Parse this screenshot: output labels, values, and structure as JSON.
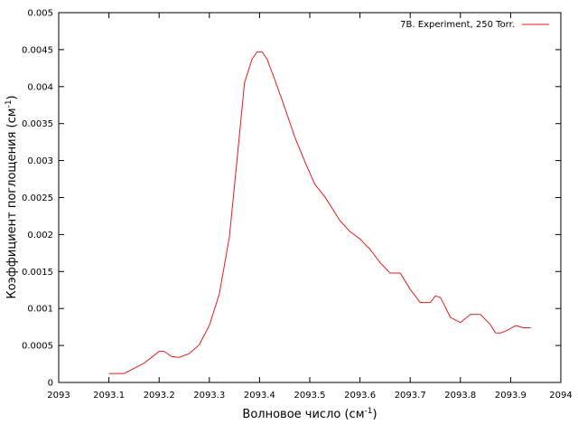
{
  "chart_data": {
    "type": "line",
    "xlabel": "Волновое число (см",
    "xlabel_sup": "-1",
    "xlabel_tail": ")",
    "ylabel": "Коэффициент поглощения (см",
    "ylabel_sup": "-1",
    "ylabel_tail": ")",
    "xlim": [
      2093,
      2094
    ],
    "ylim": [
      0,
      0.005
    ],
    "xticks": [
      "2093",
      "2093.1",
      "2093.2",
      "2093.3",
      "2093.4",
      "2093.5",
      "2093.6",
      "2093.7",
      "2093.8",
      "2093.9",
      "2094"
    ],
    "yticks": [
      "0",
      "0.0005",
      "0.001",
      "0.0015",
      "0.002",
      "0.0025",
      "0.003",
      "0.0035",
      "0.004",
      "0.0045",
      "0.005"
    ],
    "grid": false,
    "legend_position": "top-right",
    "series_color": "#e41a1c",
    "series": [
      {
        "name": "7B. Experiment, 250 Torr.",
        "x": [
          2093.1,
          2093.11,
          2093.13,
          2093.15,
          2093.17,
          2093.185,
          2093.2,
          2093.21,
          2093.225,
          2093.24,
          2093.26,
          2093.28,
          2093.3,
          2093.32,
          2093.34,
          2093.355,
          2093.37,
          2093.385,
          2093.395,
          2093.405,
          2093.415,
          2093.43,
          2093.45,
          2093.47,
          2093.49,
          2093.51,
          2093.53,
          2093.56,
          2093.58,
          2093.6,
          2093.62,
          2093.64,
          2093.66,
          2093.68,
          2093.7,
          2093.72,
          2093.74,
          2093.75,
          2093.76,
          2093.77,
          2093.78,
          2093.8,
          2093.82,
          2093.84,
          2093.86,
          2093.87,
          2093.88,
          2093.895,
          2093.91,
          2093.925,
          2093.94
        ],
        "y": [
          0.00012,
          0.00012,
          0.00012,
          0.00019,
          0.00026,
          0.00034,
          0.00042,
          0.00042,
          0.00035,
          0.00034,
          0.00039,
          0.00051,
          0.00077,
          0.0012,
          0.00197,
          0.003,
          0.00405,
          0.00437,
          0.00447,
          0.00447,
          0.00437,
          0.0041,
          0.00372,
          0.00332,
          0.00299,
          0.00268,
          0.00251,
          0.00219,
          0.00204,
          0.00194,
          0.0018,
          0.00162,
          0.00148,
          0.00148,
          0.00126,
          0.00108,
          0.00108,
          0.00117,
          0.00115,
          0.00102,
          0.00088,
          0.00081,
          0.00092,
          0.00092,
          0.00078,
          0.00067,
          0.00067,
          0.00071,
          0.00077,
          0.00074,
          0.00074
        ]
      }
    ]
  }
}
